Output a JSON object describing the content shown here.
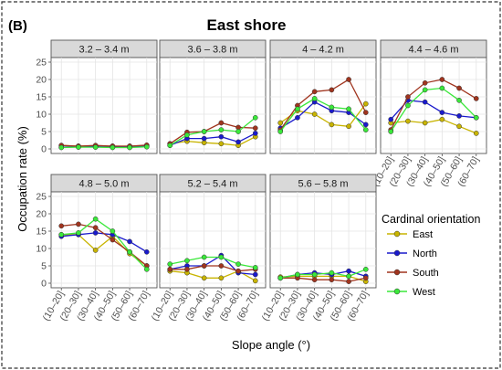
{
  "panel_label": "(B)",
  "title": "East shore",
  "chart_data": {
    "type": "line",
    "title": "East shore",
    "xlabel": "Slope angle (°)",
    "ylabel": "Occupation rate (%)",
    "ylim": [
      0,
      25
    ],
    "yticks": [
      0,
      5,
      10,
      15,
      20,
      25
    ],
    "categories": [
      "(10–20]",
      "(20–30]",
      "(30–40]",
      "(40–50]",
      "(50–60]",
      "(60–70]"
    ],
    "grid": true,
    "legend": {
      "title": "Cardinal orientation",
      "placement": "bottom-right"
    },
    "series_styles": [
      {
        "name": "East",
        "color": "#c8b400"
      },
      {
        "name": "North",
        "color": "#1a1acc"
      },
      {
        "name": "South",
        "color": "#a0341e"
      },
      {
        "name": "West",
        "color": "#3ae83a"
      }
    ],
    "panels": [
      {
        "label": "3.2 – 3.4 m",
        "series": [
          {
            "name": "East",
            "values": [
              1.0,
              0.8,
              0.9,
              0.8,
              0.8,
              0.9
            ]
          },
          {
            "name": "North",
            "values": [
              0.5,
              0.6,
              0.6,
              0.5,
              0.5,
              0.8
            ]
          },
          {
            "name": "South",
            "values": [
              1.0,
              0.8,
              1.0,
              0.8,
              0.8,
              1.1
            ]
          },
          {
            "name": "West",
            "values": [
              0.4,
              0.5,
              0.5,
              0.4,
              0.4,
              0.6
            ]
          }
        ]
      },
      {
        "label": "3.6 – 3.8 m",
        "series": [
          {
            "name": "East",
            "values": [
              1.5,
              2.2,
              1.8,
              1.5,
              1.0,
              3.5
            ]
          },
          {
            "name": "North",
            "values": [
              1.0,
              3.0,
              3.0,
              3.5,
              2.0,
              4.5
            ]
          },
          {
            "name": "South",
            "values": [
              1.5,
              4.8,
              5.0,
              7.5,
              6.2,
              6.0
            ]
          },
          {
            "name": "West",
            "values": [
              1.0,
              4.0,
              5.0,
              5.5,
              5.0,
              9.0
            ]
          }
        ]
      },
      {
        "label": "4 – 4.2 m",
        "series": [
          {
            "name": "East",
            "values": [
              7.5,
              11.0,
              10.0,
              7.0,
              6.5,
              13.0
            ]
          },
          {
            "name": "North",
            "values": [
              6.0,
              9.0,
              13.5,
              11.0,
              10.5,
              7.0
            ]
          },
          {
            "name": "South",
            "values": [
              5.5,
              12.5,
              16.5,
              17.0,
              20.0,
              10.5
            ]
          },
          {
            "name": "West",
            "values": [
              5.0,
              11.5,
              14.5,
              12.0,
              11.5,
              5.5
            ]
          }
        ]
      },
      {
        "label": "4.4 – 4.6 m",
        "series": [
          {
            "name": "East",
            "values": [
              7.5,
              8.0,
              7.5,
              8.5,
              6.5,
              4.5
            ]
          },
          {
            "name": "North",
            "values": [
              8.5,
              14.0,
              13.5,
              10.5,
              9.5,
              9.0
            ]
          },
          {
            "name": "South",
            "values": [
              5.5,
              15.0,
              19.0,
              20.0,
              17.5,
              14.5
            ]
          },
          {
            "name": "West",
            "values": [
              5.0,
              12.5,
              17.0,
              17.5,
              14.0,
              9.0
            ]
          }
        ]
      },
      {
        "label": "4.8 – 5.0 m",
        "series": [
          {
            "name": "East",
            "values": [
              14.0,
              14.0,
              9.5,
              13.5,
              8.5,
              5.0
            ]
          },
          {
            "name": "North",
            "values": [
              13.5,
              14.0,
              14.5,
              14.0,
              12.0,
              9.0
            ]
          },
          {
            "name": "South",
            "values": [
              16.5,
              17.0,
              16.0,
              12.5,
              9.0,
              5.0
            ]
          },
          {
            "name": "West",
            "values": [
              14.0,
              14.5,
              18.5,
              15.0,
              9.0,
              4.0
            ]
          }
        ]
      },
      {
        "label": "5.2 – 5.4 m",
        "series": [
          {
            "name": "East",
            "values": [
              3.5,
              3.0,
              1.5,
              1.5,
              3.5,
              0.7
            ]
          },
          {
            "name": "North",
            "values": [
              4.0,
              5.0,
              5.0,
              8.0,
              3.0,
              2.5
            ]
          },
          {
            "name": "South",
            "values": [
              4.0,
              4.0,
              5.0,
              5.0,
              3.5,
              4.0
            ]
          },
          {
            "name": "West",
            "values": [
              5.5,
              6.5,
              7.5,
              7.5,
              5.5,
              4.5
            ]
          }
        ]
      },
      {
        "label": "5.6 – 5.8 m",
        "series": [
          {
            "name": "East",
            "values": [
              1.8,
              2.0,
              2.0,
              2.0,
              2.0,
              0.5
            ]
          },
          {
            "name": "North",
            "values": [
              1.5,
              2.5,
              3.0,
              2.5,
              3.5,
              2.0
            ]
          },
          {
            "name": "South",
            "values": [
              1.5,
              1.5,
              1.0,
              1.0,
              0.5,
              1.5
            ]
          },
          {
            "name": "West",
            "values": [
              1.5,
              2.5,
              2.5,
              3.0,
              2.0,
              4.0
            ]
          }
        ]
      }
    ]
  }
}
